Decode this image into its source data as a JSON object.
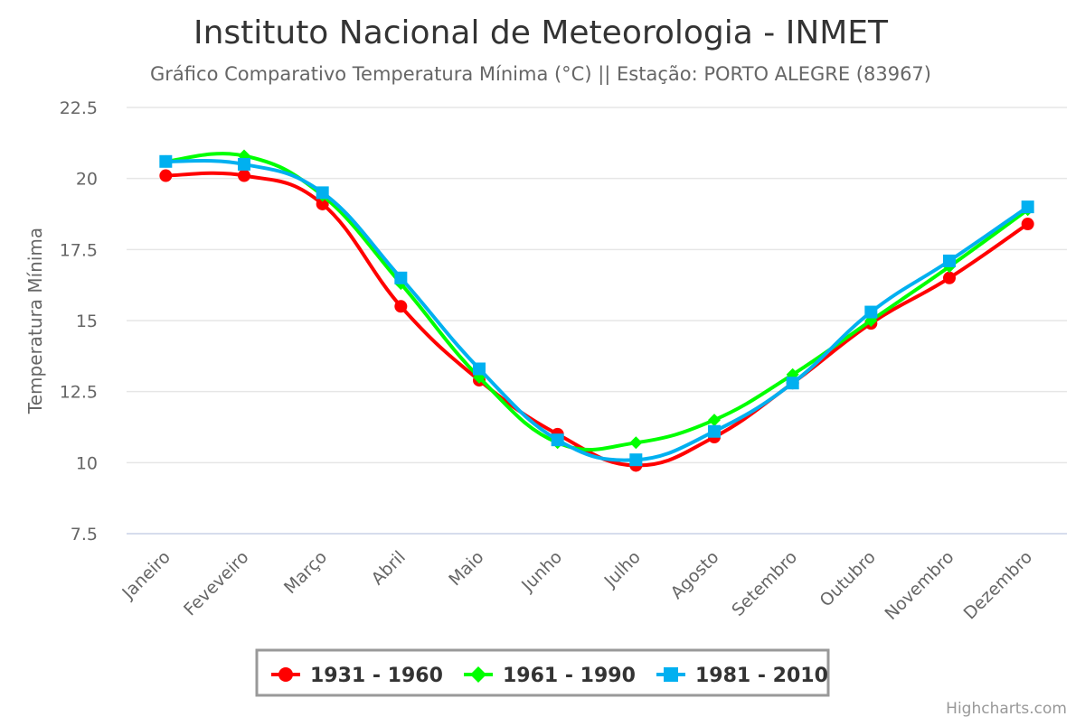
{
  "chart_data": {
    "type": "line",
    "title": "Instituto Nacional de Meteorologia - INMET",
    "subtitle": "Gráfico Comparativo Temperatura Mínima (°C) || Estação: PORTO ALEGRE (83967)",
    "xlabel": "",
    "ylabel": "Temperatura Mínima",
    "ylim": [
      7.5,
      22.5
    ],
    "yticks": [
      "22.5",
      "20",
      "17.5",
      "15",
      "12.5",
      "10",
      "7.5"
    ],
    "categories": [
      "Janeiro",
      "Feveveiro",
      "Março",
      "Abril",
      "Maio",
      "Junho",
      "Julho",
      "Agosto",
      "Setembro",
      "Outubro",
      "Novembro",
      "Dezembro"
    ],
    "grid": true,
    "legend_position": "bottom",
    "series": [
      {
        "name": "1931 - 1960",
        "color": "#ff0000",
        "marker": "circle",
        "values": [
          20.1,
          20.1,
          19.1,
          15.5,
          12.9,
          11.0,
          9.9,
          10.9,
          12.8,
          14.9,
          16.5,
          18.4
        ]
      },
      {
        "name": "1961 - 1990",
        "color": "#00ff00",
        "marker": "diamond",
        "values": [
          20.6,
          20.8,
          19.4,
          16.3,
          13.0,
          10.7,
          10.7,
          11.5,
          13.1,
          15.0,
          16.9,
          18.9
        ]
      },
      {
        "name": "1981 - 2010",
        "color": "#00b0f0",
        "marker": "square",
        "values": [
          20.6,
          20.5,
          19.5,
          16.5,
          13.3,
          10.8,
          10.1,
          11.1,
          12.8,
          15.3,
          17.1,
          19.0
        ]
      }
    ],
    "credits": "Highcharts.com"
  }
}
